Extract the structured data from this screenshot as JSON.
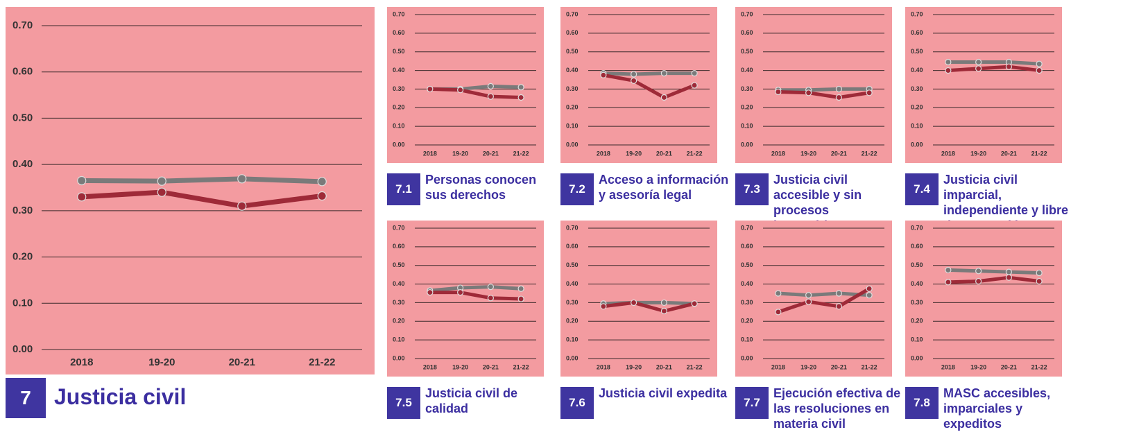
{
  "chart_data": [
    {
      "type": "line",
      "number": "7",
      "title": "Justicia civil",
      "categories": [
        "2018",
        "19-20",
        "20-21",
        "21-22"
      ],
      "series": [
        {
          "color": "#7a7a7a",
          "values": [
            0.365,
            0.364,
            0.369,
            0.363
          ]
        },
        {
          "color": "#9e2a38",
          "values": [
            0.33,
            0.34,
            0.31,
            0.332
          ]
        }
      ],
      "ylim": [
        0,
        0.7
      ],
      "yticks": [
        {
          "value": 0,
          "label": "0.00"
        },
        {
          "value": 0.1,
          "label": "0.10"
        },
        {
          "value": 0.2,
          "label": "0.20"
        },
        {
          "value": 0.3,
          "label": "0.30"
        },
        {
          "value": 0.4,
          "label": "0.40"
        },
        {
          "value": 0.5,
          "label": "0.50"
        },
        {
          "value": 0.6,
          "label": "0.60"
        },
        {
          "value": 0.7,
          "label": "0.70"
        }
      ],
      "grid": true
    },
    {
      "type": "line",
      "number": "7.1",
      "title": "Personas conocen sus derechos",
      "categories": [
        "2018",
        "19-20",
        "20-21",
        "21-22"
      ],
      "series": [
        {
          "color": "#7a7a7a",
          "values": [
            0.3,
            0.3,
            0.315,
            0.31
          ]
        },
        {
          "color": "#9e2a38",
          "values": [
            0.3,
            0.295,
            0.26,
            0.255
          ]
        }
      ],
      "ylim": [
        0,
        0.7
      ],
      "yticks": [
        {
          "value": 0,
          "label": "0.00"
        },
        {
          "value": 0.1,
          "label": "0.10"
        },
        {
          "value": 0.2,
          "label": "0.20"
        },
        {
          "value": 0.3,
          "label": "0.30"
        },
        {
          "value": 0.4,
          "label": "0.40"
        },
        {
          "value": 0.5,
          "label": "0.50"
        },
        {
          "value": 0.6,
          "label": "0.60"
        },
        {
          "value": 0.7,
          "label": "0.70"
        }
      ],
      "grid": true
    },
    {
      "type": "line",
      "number": "7.2",
      "title": "Acceso a información y asesoría legal",
      "categories": [
        "2018",
        "19-20",
        "20-21",
        "21-22"
      ],
      "series": [
        {
          "color": "#7a7a7a",
          "values": [
            0.385,
            0.38,
            0.385,
            0.385
          ]
        },
        {
          "color": "#9e2a38",
          "values": [
            0.375,
            0.345,
            0.255,
            0.32
          ]
        }
      ],
      "ylim": [
        0,
        0.7
      ],
      "yticks": [
        {
          "value": 0,
          "label": "0.00"
        },
        {
          "value": 0.1,
          "label": "0.10"
        },
        {
          "value": 0.2,
          "label": "0.20"
        },
        {
          "value": 0.3,
          "label": "0.30"
        },
        {
          "value": 0.4,
          "label": "0.40"
        },
        {
          "value": 0.5,
          "label": "0.50"
        },
        {
          "value": 0.6,
          "label": "0.60"
        },
        {
          "value": 0.7,
          "label": "0.70"
        }
      ],
      "grid": true
    },
    {
      "type": "line",
      "number": "7.3",
      "title": "Justicia civil accesible y sin procesos burocráticos",
      "categories": [
        "2018",
        "19-20",
        "20-21",
        "21-22"
      ],
      "series": [
        {
          "color": "#7a7a7a",
          "values": [
            0.295,
            0.295,
            0.3,
            0.3
          ]
        },
        {
          "color": "#9e2a38",
          "values": [
            0.285,
            0.28,
            0.255,
            0.28
          ]
        }
      ],
      "ylim": [
        0,
        0.7
      ],
      "yticks": [
        {
          "value": 0,
          "label": "0.00"
        },
        {
          "value": 0.1,
          "label": "0.10"
        },
        {
          "value": 0.2,
          "label": "0.20"
        },
        {
          "value": 0.3,
          "label": "0.30"
        },
        {
          "value": 0.4,
          "label": "0.40"
        },
        {
          "value": 0.5,
          "label": "0.50"
        },
        {
          "value": 0.6,
          "label": "0.60"
        },
        {
          "value": 0.7,
          "label": "0.70"
        }
      ],
      "grid": true
    },
    {
      "type": "line",
      "number": "7.4",
      "title": "Justicia civil imparcial, independiente y libre de corrupción",
      "categories": [
        "2018",
        "19-20",
        "20-21",
        "21-22"
      ],
      "series": [
        {
          "color": "#7a7a7a",
          "values": [
            0.445,
            0.445,
            0.445,
            0.435
          ]
        },
        {
          "color": "#9e2a38",
          "values": [
            0.4,
            0.41,
            0.42,
            0.4
          ]
        }
      ],
      "ylim": [
        0,
        0.7
      ],
      "yticks": [
        {
          "value": 0,
          "label": "0.00"
        },
        {
          "value": 0.1,
          "label": "0.10"
        },
        {
          "value": 0.2,
          "label": "0.20"
        },
        {
          "value": 0.3,
          "label": "0.30"
        },
        {
          "value": 0.4,
          "label": "0.40"
        },
        {
          "value": 0.5,
          "label": "0.50"
        },
        {
          "value": 0.6,
          "label": "0.60"
        },
        {
          "value": 0.7,
          "label": "0.70"
        }
      ],
      "grid": true
    },
    {
      "type": "line",
      "number": "7.5",
      "title": "Justicia civil de calidad",
      "categories": [
        "2018",
        "19-20",
        "20-21",
        "21-22"
      ],
      "series": [
        {
          "color": "#7a7a7a",
          "values": [
            0.365,
            0.38,
            0.385,
            0.375
          ]
        },
        {
          "color": "#9e2a38",
          "values": [
            0.355,
            0.355,
            0.325,
            0.32
          ]
        }
      ],
      "ylim": [
        0,
        0.7
      ],
      "yticks": [
        {
          "value": 0,
          "label": "0.00"
        },
        {
          "value": 0.1,
          "label": "0.10"
        },
        {
          "value": 0.2,
          "label": "0.20"
        },
        {
          "value": 0.3,
          "label": "0.30"
        },
        {
          "value": 0.4,
          "label": "0.40"
        },
        {
          "value": 0.5,
          "label": "0.50"
        },
        {
          "value": 0.6,
          "label": "0.60"
        },
        {
          "value": 0.7,
          "label": "0.70"
        }
      ],
      "grid": true
    },
    {
      "type": "line",
      "number": "7.6",
      "title": "Justicia civil expedita",
      "categories": [
        "2018",
        "19-20",
        "20-21",
        "21-22"
      ],
      "series": [
        {
          "color": "#7a7a7a",
          "values": [
            0.295,
            0.3,
            0.3,
            0.295
          ]
        },
        {
          "color": "#9e2a38",
          "values": [
            0.28,
            0.3,
            0.255,
            0.295
          ]
        }
      ],
      "ylim": [
        0,
        0.7
      ],
      "yticks": [
        {
          "value": 0,
          "label": "0.00"
        },
        {
          "value": 0.1,
          "label": "0.10"
        },
        {
          "value": 0.2,
          "label": "0.20"
        },
        {
          "value": 0.3,
          "label": "0.30"
        },
        {
          "value": 0.4,
          "label": "0.40"
        },
        {
          "value": 0.5,
          "label": "0.50"
        },
        {
          "value": 0.6,
          "label": "0.60"
        },
        {
          "value": 0.7,
          "label": "0.70"
        }
      ],
      "grid": true
    },
    {
      "type": "line",
      "number": "7.7",
      "title": "Ejecución efectiva de las resoluciones en materia civil",
      "categories": [
        "2018",
        "19-20",
        "20-21",
        "21-22"
      ],
      "series": [
        {
          "color": "#7a7a7a",
          "values": [
            0.35,
            0.34,
            0.35,
            0.34
          ]
        },
        {
          "color": "#9e2a38",
          "values": [
            0.25,
            0.305,
            0.28,
            0.375
          ]
        }
      ],
      "ylim": [
        0,
        0.7
      ],
      "yticks": [
        {
          "value": 0,
          "label": "0.00"
        },
        {
          "value": 0.1,
          "label": "0.10"
        },
        {
          "value": 0.2,
          "label": "0.20"
        },
        {
          "value": 0.3,
          "label": "0.30"
        },
        {
          "value": 0.4,
          "label": "0.40"
        },
        {
          "value": 0.5,
          "label": "0.50"
        },
        {
          "value": 0.6,
          "label": "0.60"
        },
        {
          "value": 0.7,
          "label": "0.70"
        }
      ],
      "grid": true
    },
    {
      "type": "line",
      "number": "7.8",
      "title": "MASC accesibles, imparciales y expeditos",
      "categories": [
        "2018",
        "19-20",
        "20-21",
        "21-22"
      ],
      "series": [
        {
          "color": "#7a7a7a",
          "values": [
            0.475,
            0.47,
            0.465,
            0.46
          ]
        },
        {
          "color": "#9e2a38",
          "values": [
            0.41,
            0.415,
            0.435,
            0.415
          ]
        }
      ],
      "ylim": [
        0,
        0.7
      ],
      "yticks": [
        {
          "value": 0,
          "label": "0.00"
        },
        {
          "value": 0.1,
          "label": "0.10"
        },
        {
          "value": 0.2,
          "label": "0.20"
        },
        {
          "value": 0.3,
          "label": "0.30"
        },
        {
          "value": 0.4,
          "label": "0.40"
        },
        {
          "value": 0.5,
          "label": "0.50"
        },
        {
          "value": 0.6,
          "label": "0.60"
        },
        {
          "value": 0.7,
          "label": "0.70"
        }
      ],
      "grid": true
    }
  ]
}
